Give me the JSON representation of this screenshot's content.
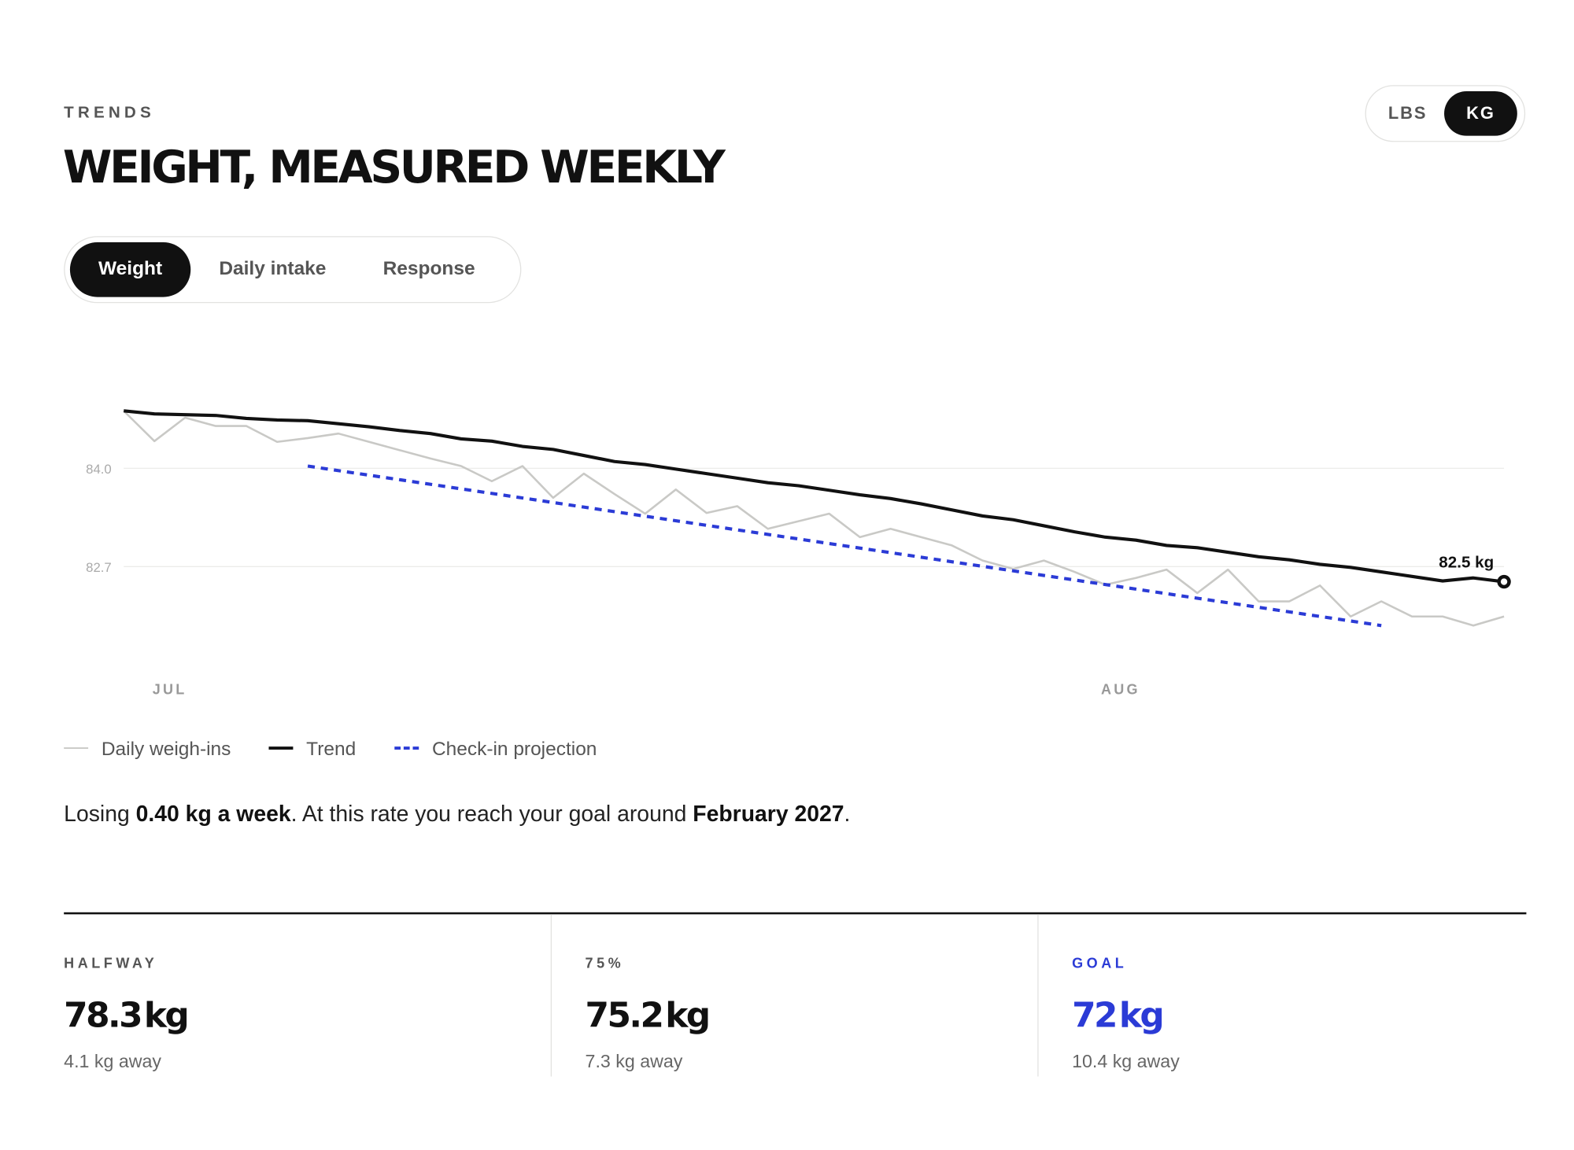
{
  "header": {
    "eyebrow": "TRENDS",
    "title": "WEIGHT, MEASURED WEEKLY"
  },
  "units": {
    "options": [
      "LBS",
      "KG"
    ],
    "selected": 1
  },
  "tabs": {
    "options": [
      "Weight",
      "Daily intake",
      "Response"
    ],
    "selected": 0
  },
  "chart_data": {
    "type": "line",
    "x": [
      0,
      1,
      2,
      3,
      4,
      5,
      6,
      7,
      8,
      9,
      10,
      11,
      12,
      13,
      14,
      15,
      16,
      17,
      18,
      19,
      20,
      21,
      22,
      23,
      24,
      25,
      26,
      27,
      28,
      29,
      30,
      31,
      32,
      33,
      34,
      35,
      36,
      37,
      38,
      39,
      40,
      41,
      42,
      43,
      44,
      45
    ],
    "xlim": [
      0,
      45
    ],
    "xticks": [
      {
        "value": 1.5,
        "label": "JUL"
      },
      {
        "value": 32.5,
        "label": "AUG"
      }
    ],
    "ylim": [
      81.6,
      85.1
    ],
    "yticks": [
      {
        "value": 84,
        "label": "84.0"
      },
      82.7
    ],
    "grid": true,
    "series": [
      {
        "name": "Daily weigh-ins",
        "color": "#c9c9c6",
        "style": "solid",
        "values": [
          84.76,
          84.36,
          84.67,
          84.56,
          84.56,
          84.35,
          84.4,
          84.46,
          84.35,
          84.24,
          84.13,
          84.03,
          83.83,
          84.03,
          83.61,
          83.93,
          83.66,
          83.4,
          83.72,
          83.41,
          83.5,
          83.2,
          83.3,
          83.4,
          83.09,
          83.2,
          83.09,
          82.98,
          82.78,
          82.67,
          82.78,
          82.63,
          82.46,
          82.55,
          82.66,
          82.35,
          82.66,
          82.24,
          82.24,
          82.45,
          82.04,
          82.24,
          82.04,
          82.04,
          81.92,
          82.04
        ]
      },
      {
        "name": "Trend",
        "color": "#111111",
        "style": "solid",
        "values": [
          84.76,
          84.72,
          84.71,
          84.7,
          84.66,
          84.64,
          84.63,
          84.59,
          84.55,
          84.5,
          84.46,
          84.39,
          84.36,
          84.29,
          84.25,
          84.17,
          84.09,
          84.05,
          83.99,
          83.93,
          83.87,
          83.81,
          83.77,
          83.71,
          83.65,
          83.6,
          83.53,
          83.45,
          83.37,
          83.32,
          83.24,
          83.16,
          83.09,
          83.05,
          82.98,
          82.95,
          82.89,
          82.83,
          82.79,
          82.73,
          82.69,
          82.63,
          82.57,
          82.51,
          82.55,
          82.5
        ],
        "value_labels": [
          null,
          null,
          null,
          null,
          null,
          null,
          null,
          null,
          null,
          null,
          null,
          null,
          null,
          null,
          null,
          null,
          null,
          null,
          null,
          null,
          null,
          null,
          null,
          null,
          null,
          null,
          null,
          null,
          null,
          null,
          null,
          null,
          null,
          null,
          null,
          null,
          null,
          null,
          null,
          null,
          null,
          null,
          null,
          null,
          null,
          "82.5 kg"
        ]
      },
      {
        "name": "Check-in projection",
        "color": "#2b3bd6",
        "style": "dashed",
        "x": [
          6,
          41
        ],
        "values": [
          84.03,
          81.92
        ]
      }
    ]
  },
  "summary": [
    "Losing ",
    "0.40 kg a week",
    ". At this rate you reach your goal around ",
    "February 2027",
    "."
  ],
  "stats": [
    {
      "label": "HALFWAY",
      "value": "78.3",
      "unit": "kg",
      "note": "4.1 kg away"
    },
    {
      "label": "75%",
      "value": "75.2",
      "unit": "kg",
      "note": "7.3 kg away"
    },
    {
      "label": "GOAL",
      "value": "72",
      "unit": "kg",
      "note": "10.4 kg away"
    }
  ]
}
